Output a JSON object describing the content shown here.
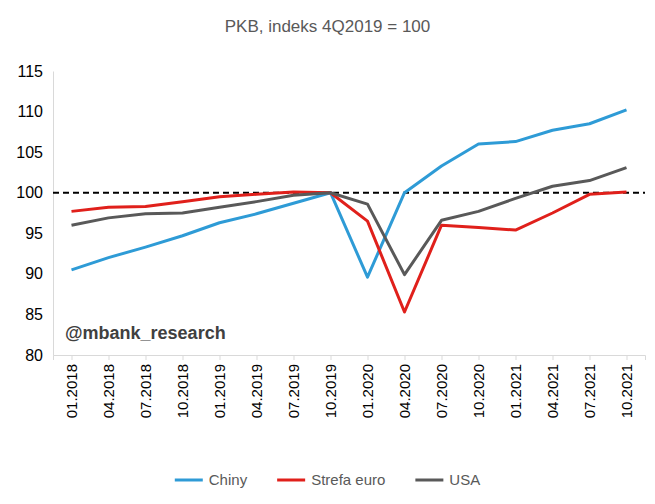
{
  "chart_data": {
    "type": "line",
    "title": "PKB, indeks 4Q2019 = 100",
    "annotation": "@mbank_research",
    "categories": [
      "01.2018",
      "04.2018",
      "07.2018",
      "10.2018",
      "01.2019",
      "04.2019",
      "07.2019",
      "10.2019",
      "01.2020",
      "04.2020",
      "07.2020",
      "10.2020",
      "01.2021",
      "04.2021",
      "07.2021",
      "10.2021"
    ],
    "series": [
      {
        "name": "Chiny",
        "color": "#2e9bd6",
        "values": [
          90.5,
          92.0,
          93.3,
          94.7,
          96.3,
          97.4,
          98.7,
          100,
          89.6,
          100,
          103.3,
          106,
          106.3,
          107.7,
          108.5,
          110.2
        ]
      },
      {
        "name": "Strefa euro",
        "color": "#e0201b",
        "values": [
          97.7,
          98.2,
          98.3,
          98.9,
          99.5,
          99.8,
          100.1,
          100,
          96.5,
          85.3,
          96.0,
          95.7,
          95.4,
          97.5,
          99.8,
          100.1
        ]
      },
      {
        "name": "USA",
        "color": "#595959",
        "values": [
          96.0,
          96.9,
          97.4,
          97.5,
          98.2,
          98.9,
          99.7,
          100,
          98.6,
          89.9,
          96.6,
          97.7,
          99.3,
          100.8,
          101.5,
          103.1
        ]
      }
    ],
    "reference_line": 100,
    "ylim": [
      80,
      115
    ],
    "yticks": [
      80,
      85,
      90,
      95,
      100,
      105,
      110,
      115
    ],
    "grid": false,
    "legend": "bottom"
  }
}
